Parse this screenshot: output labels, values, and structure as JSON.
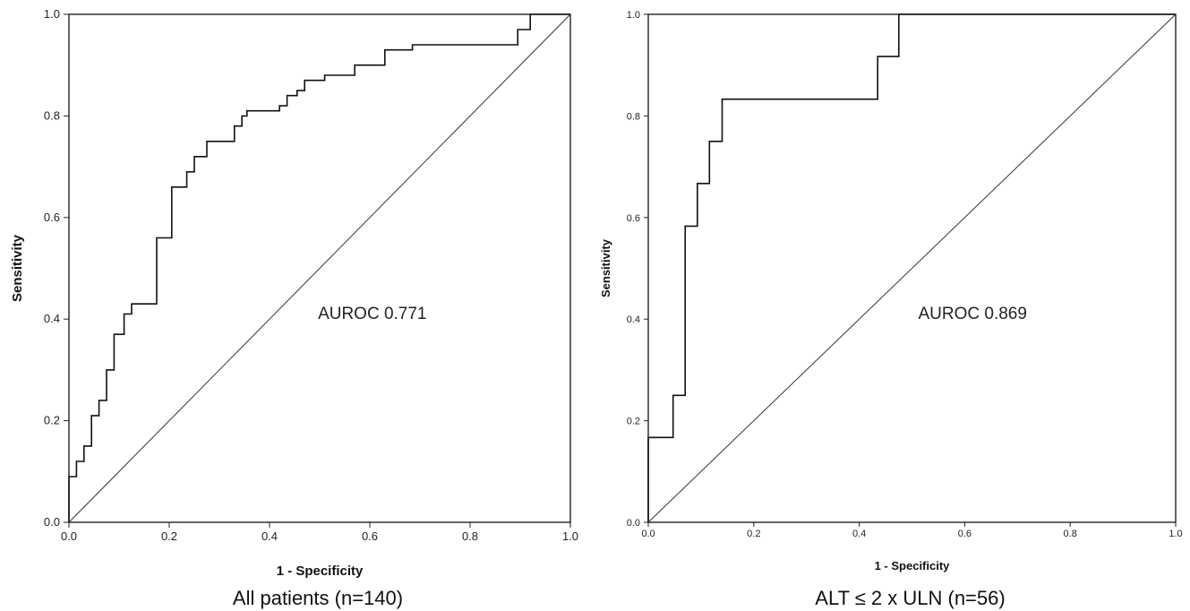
{
  "chart_data": [
    {
      "type": "line",
      "caption": "All patients (n=140)",
      "xlabel": "1 - Specificity",
      "ylabel": "Sensitivity",
      "xlim": [
        0,
        1
      ],
      "ylim": [
        0,
        1
      ],
      "xticks": [
        "0.0",
        "0.2",
        "0.4",
        "0.6",
        "0.8",
        "1.0"
      ],
      "yticks": [
        "0.0",
        "0.2",
        "0.4",
        "0.6",
        "0.8",
        "1.0"
      ],
      "annotation": "AUROC 0.771",
      "series": [
        {
          "kind": "roc",
          "x": [
            0,
            0,
            0.015,
            0.015,
            0.03,
            0.03,
            0.045,
            0.045,
            0.06,
            0.06,
            0.075,
            0.075,
            0.09,
            0.09,
            0.11,
            0.11,
            0.125,
            0.125,
            0.14,
            0.14,
            0.175,
            0.175,
            0.205,
            0.205,
            0.235,
            0.235,
            0.25,
            0.25,
            0.275,
            0.275,
            0.33,
            0.33,
            0.345,
            0.345,
            0.355,
            0.355,
            0.42,
            0.42,
            0.435,
            0.435,
            0.455,
            0.455,
            0.47,
            0.47,
            0.51,
            0.51,
            0.57,
            0.57,
            0.63,
            0.63,
            0.685,
            0.685,
            0.895,
            0.895,
            0.92,
            0.92,
            1.0
          ],
          "y": [
            0,
            0.09,
            0.09,
            0.12,
            0.12,
            0.15,
            0.15,
            0.21,
            0.21,
            0.24,
            0.24,
            0.3,
            0.3,
            0.37,
            0.37,
            0.41,
            0.41,
            0.43,
            0.43,
            0.43,
            0.43,
            0.56,
            0.56,
            0.66,
            0.66,
            0.69,
            0.69,
            0.72,
            0.72,
            0.75,
            0.75,
            0.78,
            0.78,
            0.8,
            0.8,
            0.81,
            0.81,
            0.82,
            0.82,
            0.84,
            0.84,
            0.85,
            0.85,
            0.87,
            0.87,
            0.88,
            0.88,
            0.9,
            0.9,
            0.93,
            0.93,
            0.94,
            0.94,
            0.97,
            0.97,
            1.0,
            1.0
          ]
        },
        {
          "kind": "reference",
          "x": [
            0,
            1
          ],
          "y": [
            0,
            1
          ]
        }
      ]
    },
    {
      "type": "line",
      "caption": "ALT ≤ 2 x ULN (n=56)",
      "xlabel": "1 - Specificity",
      "ylabel": "Sensitivity",
      "xlim": [
        0,
        1
      ],
      "ylim": [
        0,
        1
      ],
      "xticks": [
        "0.0",
        "0.2",
        "0.4",
        "0.6",
        "0.8",
        "1.0"
      ],
      "yticks": [
        "0.0",
        "0.2",
        "0.4",
        "0.6",
        "0.8",
        "1.0"
      ],
      "annotation": "AUROC 0.869",
      "series": [
        {
          "kind": "roc",
          "x": [
            0,
            0,
            0.047,
            0.047,
            0.07,
            0.07,
            0.093,
            0.093,
            0.116,
            0.116,
            0.14,
            0.14,
            0.435,
            0.435,
            0.475,
            0.475,
            1.0
          ],
          "y": [
            0,
            0.167,
            0.167,
            0.25,
            0.25,
            0.583,
            0.583,
            0.667,
            0.667,
            0.75,
            0.75,
            0.833,
            0.833,
            0.917,
            0.917,
            1.0,
            1.0
          ]
        },
        {
          "kind": "reference",
          "x": [
            0,
            1
          ],
          "y": [
            0,
            1
          ]
        }
      ]
    }
  ]
}
